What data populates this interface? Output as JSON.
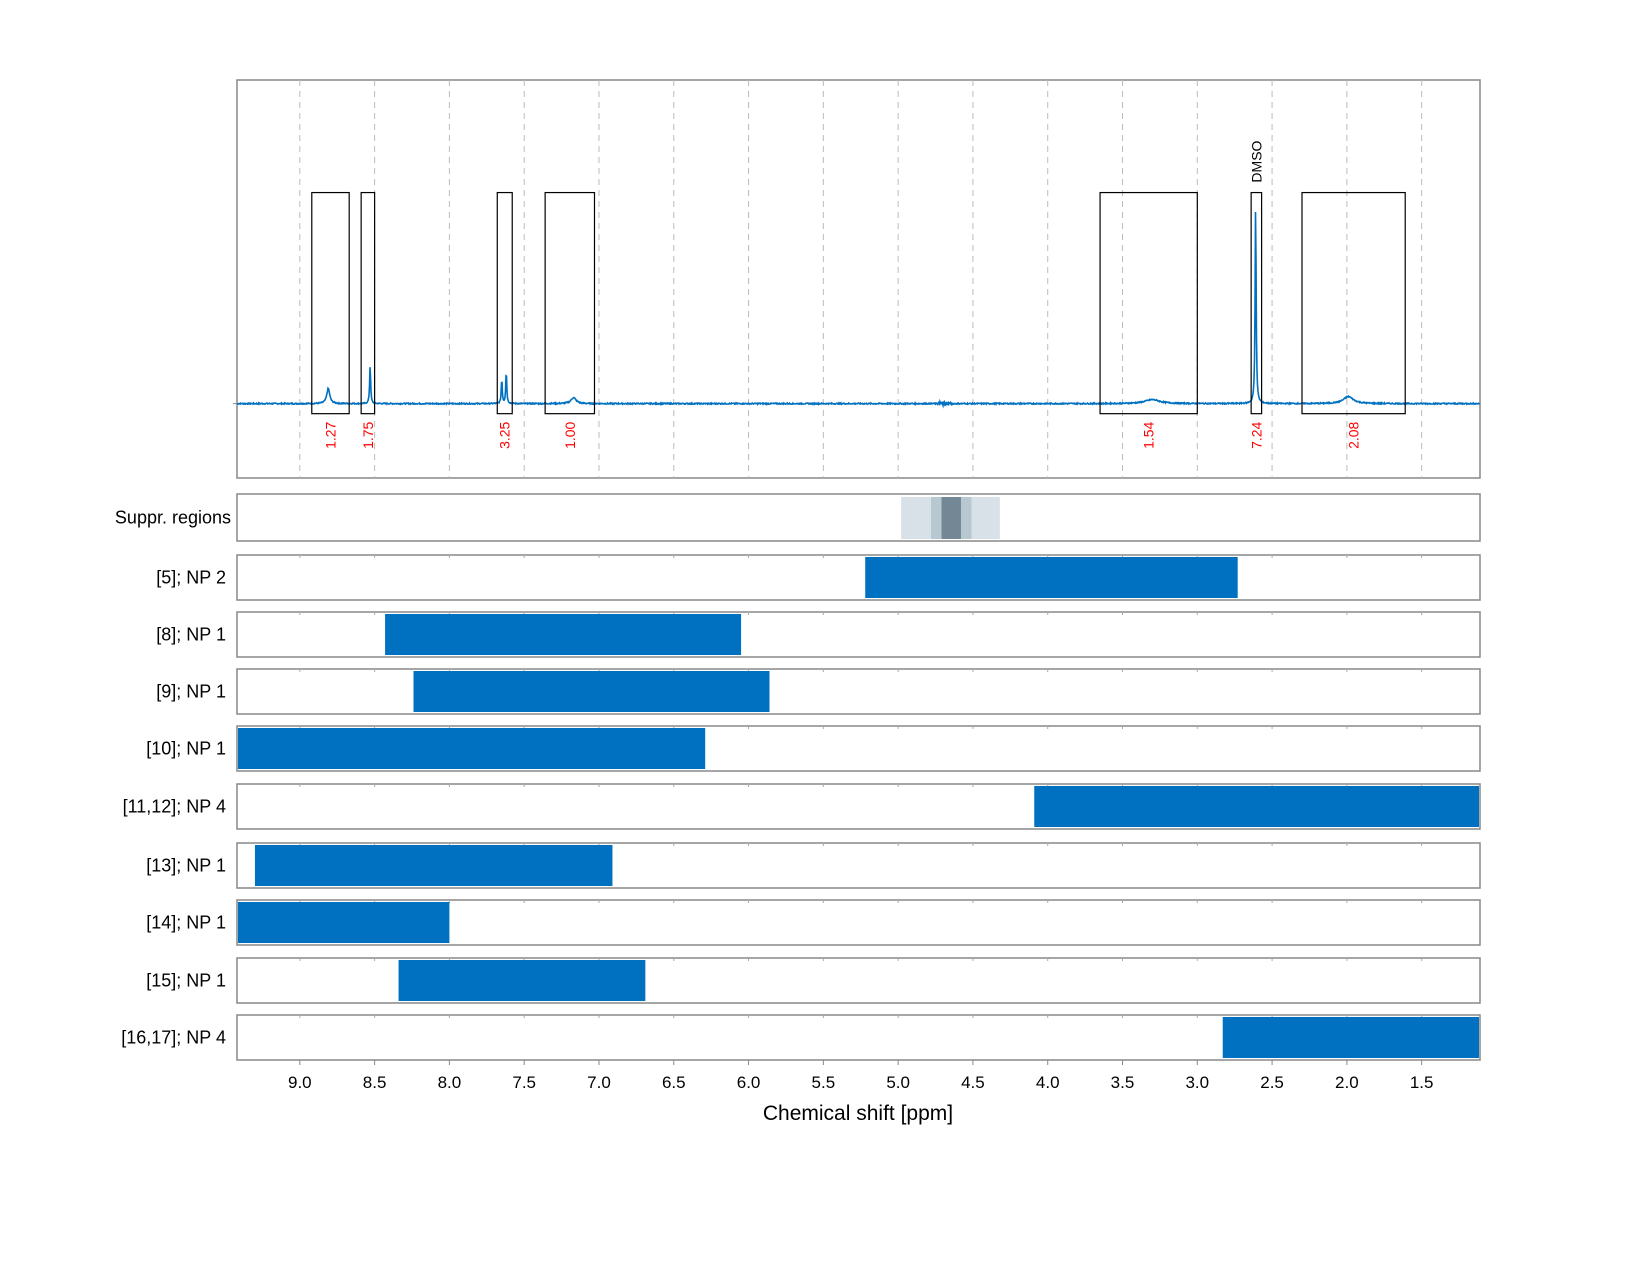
{
  "chart_data": {
    "type": "spectrum-with-range-bars",
    "xlabel": "Chemical shift [ppm]",
    "xlim": [
      9.42,
      1.11
    ],
    "x_reversed": true,
    "xticks": [
      9.0,
      8.5,
      8.0,
      7.5,
      7.0,
      6.5,
      6.0,
      5.5,
      5.0,
      4.5,
      4.0,
      3.5,
      3.0,
      2.5,
      2.0,
      1.5
    ],
    "xtick_labels": [
      "9.0",
      "8.5",
      "8.0",
      "7.5",
      "7.0",
      "6.5",
      "6.0",
      "5.5",
      "5.0",
      "4.5",
      "4.0",
      "3.5",
      "3.0",
      "2.5",
      "2.0",
      "1.5"
    ],
    "grid": "vertical dashed",
    "colors": {
      "spectrum": "#0070c0",
      "bar": "#0070c0",
      "integral_label": "#ff0000",
      "supp_light": "#d9e1e8",
      "supp_mid": "#b7c8d1",
      "supp_dark": "#738894"
    },
    "spectrum": {
      "ylim": [
        -0.37,
        1.61
      ],
      "peaks": [
        {
          "ppm": 8.81,
          "height": 0.075,
          "width": 0.012
        },
        {
          "ppm": 8.53,
          "height": 0.19,
          "width": 0.004
        },
        {
          "ppm": 7.65,
          "height": 0.12,
          "width": 0.004
        },
        {
          "ppm": 7.62,
          "height": 0.16,
          "width": 0.004
        },
        {
          "ppm": 7.17,
          "height": 0.03,
          "width": 0.02
        },
        {
          "ppm": 3.3,
          "height": 0.02,
          "width": 0.06
        },
        {
          "ppm": 2.61,
          "height": 1.0,
          "width": 0.004
        },
        {
          "ppm": 1.99,
          "height": 0.035,
          "width": 0.04
        }
      ],
      "integration_regions": [
        {
          "from": 8.92,
          "to": 8.67,
          "label": "1.27"
        },
        {
          "from": 8.59,
          "to": 8.5,
          "label": "1.75"
        },
        {
          "from": 7.68,
          "to": 7.58,
          "label": "3.25"
        },
        {
          "from": 7.36,
          "to": 7.03,
          "label": "1.00"
        },
        {
          "from": 3.65,
          "to": 3.0,
          "label": "1.54"
        },
        {
          "from": 2.64,
          "to": 2.57,
          "label": "7.24",
          "annotation": "DMSO"
        },
        {
          "from": 2.3,
          "to": 1.61,
          "label": "2.08"
        }
      ],
      "region_box_y": [
        -0.05,
        1.05
      ]
    },
    "suppression": {
      "label": "Suppr. regions",
      "bands": [
        {
          "from": 4.98,
          "to": 4.32,
          "level": "light"
        },
        {
          "from": 4.78,
          "to": 4.51,
          "level": "mid"
        },
        {
          "from": 4.71,
          "to": 4.58,
          "level": "dark"
        }
      ]
    },
    "rows": [
      {
        "label": "[5]; NP 2",
        "from": 5.22,
        "to": 2.73
      },
      {
        "label": "[8]; NP 1",
        "from": 8.43,
        "to": 6.05
      },
      {
        "label": "[9]; NP 1",
        "from": 8.24,
        "to": 5.86
      },
      {
        "label": "[10]; NP 1",
        "from": 9.42,
        "to": 6.29
      },
      {
        "label": "[11,12]; NP 4",
        "from": 4.09,
        "to": 1.11
      },
      {
        "label": "[13]; NP 1",
        "from": 9.3,
        "to": 6.91
      },
      {
        "label": "[14]; NP 1",
        "from": 9.42,
        "to": 8.0
      },
      {
        "label": "[15]; NP 1",
        "from": 8.34,
        "to": 6.69
      },
      {
        "label": "[16,17]; NP 4",
        "from": 2.83,
        "to": 1.11
      }
    ]
  }
}
